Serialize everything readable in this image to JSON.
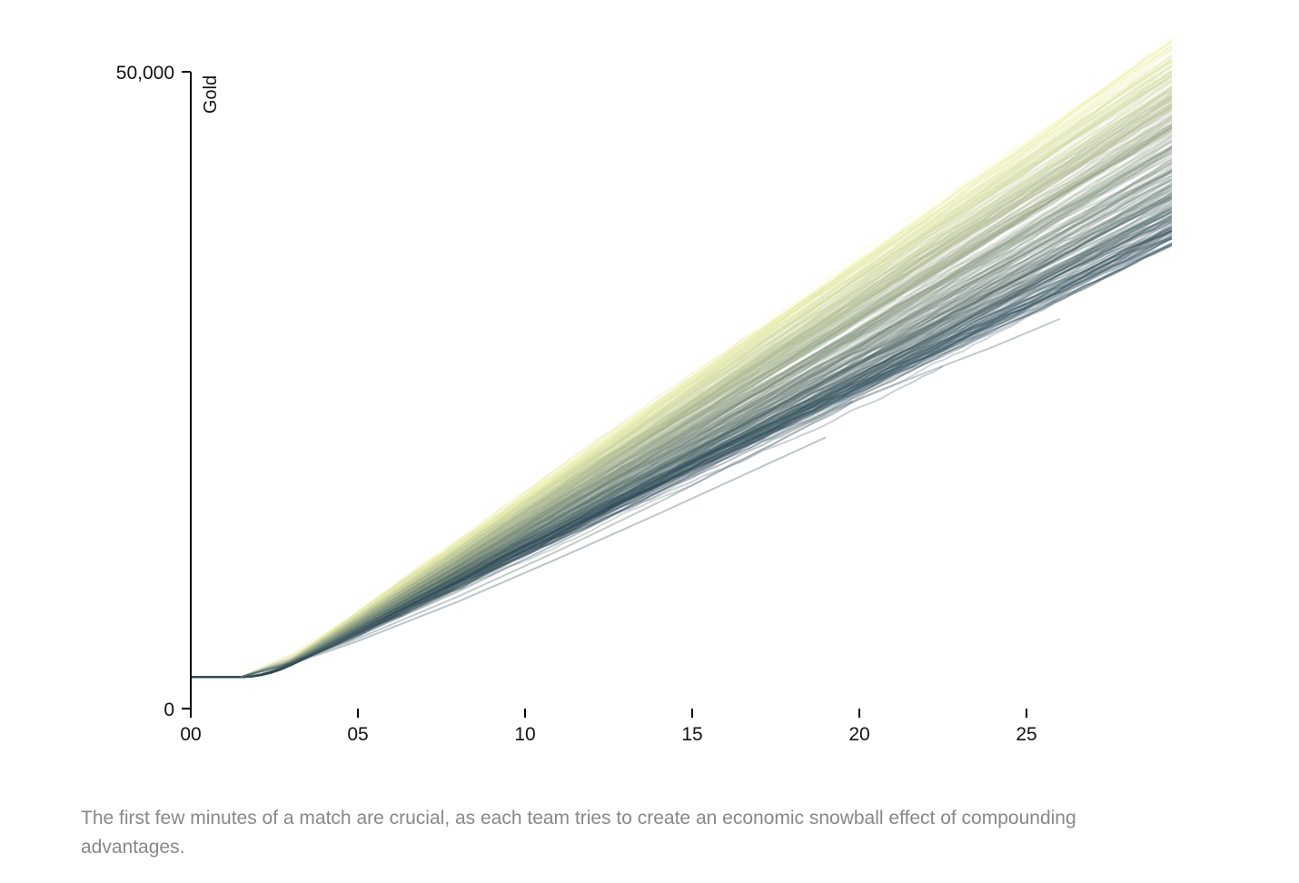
{
  "chart_data": {
    "type": "line",
    "title": "",
    "xlabel": "",
    "ylabel": "Gold",
    "x_unit": "minutes",
    "xlim": [
      0,
      29.4
    ],
    "ylim": [
      0,
      50000
    ],
    "x_ticks": [
      {
        "value": 0,
        "label": "00"
      },
      {
        "value": 5,
        "label": "05"
      },
      {
        "value": 10,
        "label": "10"
      },
      {
        "value": 15,
        "label": "15"
      },
      {
        "value": 20,
        "label": "20"
      },
      {
        "value": 25,
        "label": "25"
      }
    ],
    "y_ticks": [
      {
        "value": 0,
        "label": "0"
      },
      {
        "value": 50000,
        "label": "50,000"
      }
    ],
    "grid": false,
    "legend": "none",
    "starting_gold": 2475,
    "color_scale": {
      "low": "#f2f5b4",
      "high": "#2e4b5a"
    },
    "series_summary": "Several hundred faint, overlapping per-team gold curves; all start at about 2,475 gold at 00:00, stay flat until about 1:30, then rise roughly linearly, reaching about 35,000–50,000+ gold by minute 29; lighter yellow curves rise fastest, darker blue-gray curves slowest; some curves end early between minutes 19 and 26.",
    "series": [
      {
        "x": [
          0,
          1.5,
          3,
          5,
          8,
          11,
          14,
          17,
          20,
          23,
          26,
          29.4
        ],
        "y": [
          2475,
          2475,
          4300,
          7500,
          12800,
          18300,
          24000,
          29700,
          35300,
          40800,
          46300,
          52500
        ]
      },
      {
        "x": [
          0,
          1.5,
          3,
          5,
          8,
          11,
          14,
          17,
          20,
          23,
          26,
          29.4
        ],
        "y": [
          2475,
          2475,
          4200,
          7200,
          12200,
          17500,
          23000,
          28500,
          33900,
          39200,
          44500,
          50500
        ]
      },
      {
        "x": [
          0,
          1.5,
          3,
          5,
          8,
          11,
          14,
          17,
          20,
          23,
          26,
          29.4
        ],
        "y": [
          2475,
          2475,
          4100,
          7000,
          11800,
          16900,
          22200,
          27500,
          32800,
          38000,
          43200,
          48900
        ]
      },
      {
        "x": [
          0,
          1.5,
          3,
          5,
          8,
          11,
          14,
          17,
          20,
          23,
          26,
          29.4
        ],
        "y": [
          2475,
          2475,
          4000,
          6800,
          11400,
          16300,
          21400,
          26600,
          31700,
          36800,
          41900,
          47600
        ]
      },
      {
        "x": [
          0,
          1.5,
          3,
          5,
          8,
          11,
          14,
          17,
          20,
          23,
          26,
          29.4
        ],
        "y": [
          2475,
          2475,
          3900,
          6600,
          11000,
          15700,
          20600,
          25600,
          30600,
          35600,
          40600,
          46300
        ]
      },
      {
        "x": [
          0,
          1.5,
          3,
          5,
          8,
          11,
          14,
          17,
          20,
          23,
          26,
          29.4
        ],
        "y": [
          2475,
          2475,
          3850,
          6400,
          10600,
          15100,
          19800,
          24600,
          29400,
          34300,
          39200,
          44800
        ]
      },
      {
        "x": [
          0,
          1.5,
          3,
          5,
          8,
          11,
          14,
          17,
          20,
          23,
          26,
          29.4
        ],
        "y": [
          2475,
          2475,
          3800,
          6200,
          10200,
          14500,
          19000,
          23600,
          28200,
          32900,
          37700,
          43200
        ]
      },
      {
        "x": [
          0,
          1.5,
          3,
          5,
          8,
          11,
          14,
          17,
          20,
          23,
          26,
          29.4
        ],
        "y": [
          2475,
          2475,
          3700,
          6000,
          9800,
          13900,
          18200,
          22600,
          27000,
          31500,
          36100,
          41300
        ]
      },
      {
        "x": [
          0,
          1.5,
          3,
          5,
          8,
          11,
          14,
          17,
          20,
          23,
          26,
          29.4
        ],
        "y": [
          2475,
          2475,
          3650,
          5800,
          9400,
          13300,
          17400,
          21600,
          25900,
          30200,
          34600,
          39200
        ]
      },
      {
        "x": [
          0,
          1.5,
          3,
          5,
          8,
          11,
          14,
          17,
          20,
          22,
          24,
          26
        ],
        "y": [
          2475,
          2475,
          3550,
          5500,
          8800,
          12400,
          16200,
          20200,
          24300,
          26400,
          28400,
          30600
        ]
      },
      {
        "x": [
          0,
          1.5,
          3,
          5,
          8,
          11,
          14,
          17,
          19
        ],
        "y": [
          2475,
          2475,
          3500,
          5300,
          8400,
          11800,
          15300,
          18900,
          21300
        ]
      },
      {
        "x": [
          0,
          1.5,
          3,
          5,
          8,
          11,
          14,
          17,
          20,
          23,
          25
        ],
        "y": [
          2475,
          2475,
          3600,
          5700,
          9200,
          13000,
          17000,
          21100,
          25200,
          29300,
          31800
        ]
      }
    ]
  },
  "caption": "The first few minutes of a match are crucial, as each team tries to create an economic snowball effect of compounding advantages."
}
